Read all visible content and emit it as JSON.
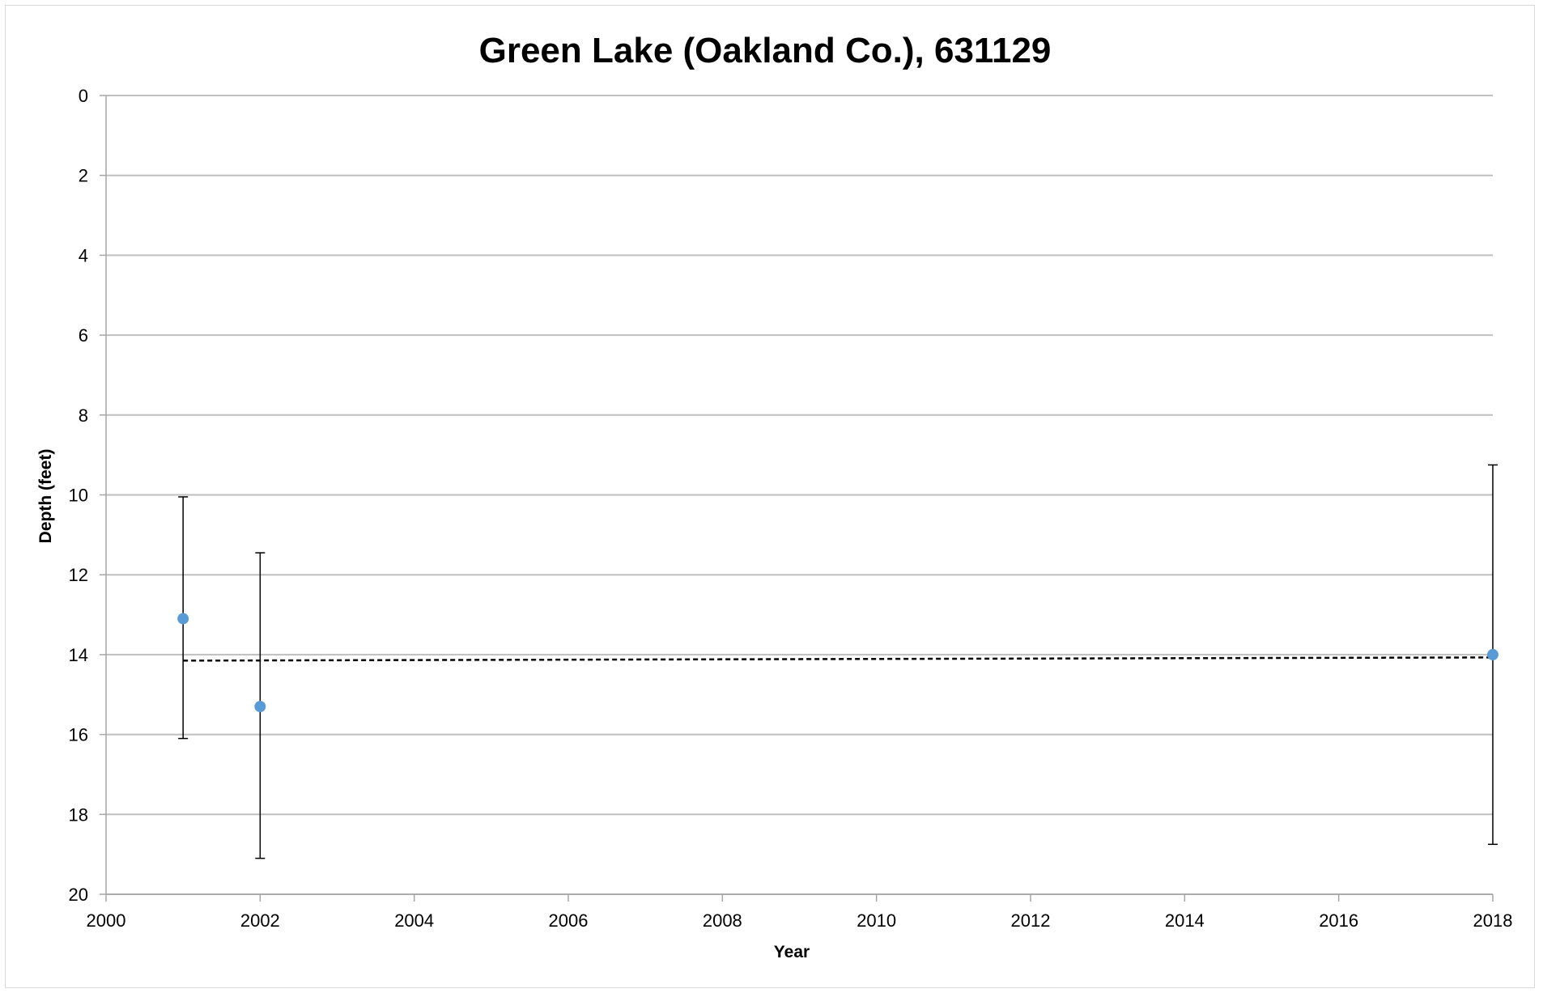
{
  "chart_data": {
    "type": "scatter",
    "title": "Green Lake (Oakland Co.), 631129",
    "xlabel": "Year",
    "ylabel": "Depth (feet)",
    "xlim": [
      2000,
      2018
    ],
    "ylim": [
      0,
      20
    ],
    "y_inverted": true,
    "grid": "horizontal",
    "x_ticks": [
      "2000",
      "2002",
      "2004",
      "2006",
      "2008",
      "2010",
      "2012",
      "2014",
      "2016",
      "2018"
    ],
    "y_ticks": [
      "0",
      "2",
      "4",
      "6",
      "8",
      "10",
      "12",
      "14",
      "16",
      "18",
      "20"
    ],
    "series": [
      {
        "color": "#5b9bd5",
        "x": [
          2001,
          2002,
          2018
        ],
        "y": [
          13.1,
          15.3,
          14.0
        ],
        "error_low": [
          10.05,
          11.45,
          9.25
        ],
        "error_high": [
          16.1,
          19.1,
          18.75
        ]
      }
    ],
    "trendline": {
      "style": "dashed",
      "color": "#000000",
      "x": [
        2001,
        2018
      ],
      "y": [
        14.15,
        14.07
      ]
    }
  }
}
